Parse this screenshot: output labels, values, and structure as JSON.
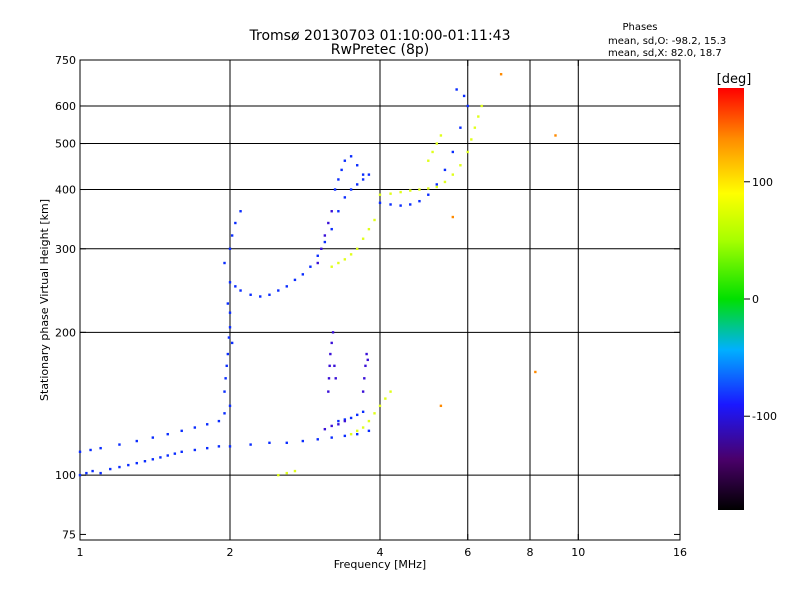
{
  "chart_data": {
    "type": "scatter",
    "title_line1": "Tromsø 20130703 01:10:00-01:11:43",
    "title_line2": "RwPretec (8p)",
    "stats": {
      "heading": "Phases",
      "line1": "mean, sd,O: -98.2, 15.3",
      "line2": "mean, sd,X:  82.0, 18.7"
    },
    "xlabel": "Frequency [MHz]",
    "ylabel": "Stationary phase Virtual Height [km]",
    "xscale": "log",
    "yscale": "log",
    "xlim": [
      1,
      16
    ],
    "ylim": [
      73,
      750
    ],
    "xticks": [
      1,
      2,
      4,
      6,
      8,
      10,
      16
    ],
    "xtick_labels": [
      "1",
      "2",
      "4",
      "6",
      "8",
      "10",
      "16"
    ],
    "yticks": [
      75,
      100,
      200,
      300,
      400,
      500,
      600,
      750
    ],
    "ytick_labels": [
      "75",
      "100",
      "200",
      "300",
      "400",
      "500",
      "600",
      "750"
    ],
    "x_gridlines": [
      2,
      4,
      6,
      8,
      10
    ],
    "y_gridlines": [
      100,
      200,
      300,
      400,
      500,
      600
    ],
    "colorbar": {
      "label": "[deg]",
      "range": [
        -180,
        180
      ],
      "ticks": [
        100,
        0,
        -100
      ],
      "tick_labels": [
        "100",
        "0",
        "-100"
      ],
      "colormap": "rainbow"
    },
    "series": [
      {
        "phase": -105,
        "color": "#0a2cff",
        "points": [
          [
            1.0,
            100
          ],
          [
            1.03,
            101
          ],
          [
            1.06,
            102
          ],
          [
            1.1,
            101
          ],
          [
            1.15,
            103
          ],
          [
            1.2,
            104
          ],
          [
            1.25,
            105
          ],
          [
            1.3,
            106
          ],
          [
            1.35,
            107
          ],
          [
            1.4,
            108
          ],
          [
            1.45,
            109
          ],
          [
            1.5,
            110
          ],
          [
            1.55,
            111
          ],
          [
            1.6,
            112
          ],
          [
            1.7,
            113
          ],
          [
            1.8,
            114
          ],
          [
            1.9,
            115
          ],
          [
            2.0,
            115
          ],
          [
            2.2,
            116
          ],
          [
            2.4,
            117
          ],
          [
            2.6,
            117
          ],
          [
            2.8,
            118
          ],
          [
            3.0,
            119
          ],
          [
            3.2,
            120
          ],
          [
            3.4,
            121
          ],
          [
            3.6,
            122
          ],
          [
            3.8,
            124
          ],
          [
            1.0,
            112
          ],
          [
            1.05,
            113
          ],
          [
            1.1,
            114
          ],
          [
            1.2,
            116
          ],
          [
            1.3,
            118
          ],
          [
            1.4,
            120
          ],
          [
            1.5,
            122
          ],
          [
            1.6,
            124
          ],
          [
            1.7,
            126
          ],
          [
            1.8,
            128
          ],
          [
            1.9,
            130
          ],
          [
            1.95,
            135
          ],
          [
            2.0,
            140
          ],
          [
            1.95,
            150
          ],
          [
            1.96,
            160
          ],
          [
            1.97,
            170
          ],
          [
            1.98,
            180
          ],
          [
            1.99,
            195
          ],
          [
            2.0,
            205
          ],
          [
            2.02,
            190
          ],
          [
            2.0,
            255
          ],
          [
            2.05,
            250
          ],
          [
            2.1,
            245
          ],
          [
            2.2,
            240
          ],
          [
            2.3,
            238
          ],
          [
            2.4,
            240
          ],
          [
            2.5,
            245
          ],
          [
            2.6,
            250
          ],
          [
            2.7,
            258
          ],
          [
            2.8,
            265
          ],
          [
            2.9,
            275
          ],
          [
            3.0,
            290
          ],
          [
            3.1,
            310
          ],
          [
            3.2,
            330
          ],
          [
            3.3,
            360
          ],
          [
            3.4,
            385
          ],
          [
            3.5,
            400
          ],
          [
            3.6,
            410
          ],
          [
            3.7,
            420
          ],
          [
            3.8,
            430
          ],
          [
            1.95,
            280
          ],
          [
            2.0,
            300
          ],
          [
            2.02,
            320
          ],
          [
            2.05,
            340
          ],
          [
            2.1,
            360
          ],
          [
            1.98,
            230
          ],
          [
            2.0,
            220
          ],
          [
            3.25,
            400
          ],
          [
            3.3,
            420
          ],
          [
            3.35,
            440
          ],
          [
            3.4,
            460
          ],
          [
            3.5,
            470
          ],
          [
            3.6,
            450
          ],
          [
            3.7,
            430
          ],
          [
            4.0,
            375
          ],
          [
            4.2,
            372
          ],
          [
            4.4,
            370
          ],
          [
            4.6,
            372
          ],
          [
            4.8,
            378
          ],
          [
            5.0,
            390
          ],
          [
            5.2,
            410
          ],
          [
            5.4,
            440
          ],
          [
            5.6,
            480
          ],
          [
            5.8,
            540
          ],
          [
            6.0,
            600
          ],
          [
            5.9,
            630
          ],
          [
            5.7,
            650
          ],
          [
            3.3,
            130
          ],
          [
            3.4,
            131
          ],
          [
            3.5,
            132
          ],
          [
            3.6,
            134
          ],
          [
            3.7,
            136
          ]
        ]
      },
      {
        "phase": -125,
        "color": "#3a10d8",
        "points": [
          [
            3.15,
            150
          ],
          [
            3.16,
            160
          ],
          [
            3.17,
            170
          ],
          [
            3.18,
            180
          ],
          [
            3.2,
            190
          ],
          [
            3.22,
            200
          ],
          [
            3.24,
            170
          ],
          [
            3.26,
            160
          ],
          [
            3.7,
            150
          ],
          [
            3.72,
            160
          ],
          [
            3.74,
            170
          ],
          [
            3.76,
            180
          ],
          [
            3.78,
            175
          ],
          [
            3.0,
            280
          ],
          [
            3.05,
            300
          ],
          [
            3.1,
            320
          ],
          [
            3.15,
            340
          ],
          [
            3.2,
            360
          ],
          [
            3.1,
            125
          ],
          [
            3.2,
            127
          ],
          [
            3.3,
            128
          ],
          [
            3.4,
            130
          ]
        ]
      },
      {
        "phase": 95,
        "color": "#e0ff1a",
        "points": [
          [
            3.2,
            275
          ],
          [
            3.3,
            280
          ],
          [
            3.4,
            285
          ],
          [
            3.5,
            292
          ],
          [
            3.6,
            300
          ],
          [
            3.7,
            315
          ],
          [
            3.8,
            330
          ],
          [
            3.9,
            345
          ],
          [
            3.5,
            122
          ],
          [
            3.6,
            124
          ],
          [
            3.7,
            126
          ],
          [
            3.8,
            130
          ],
          [
            3.9,
            135
          ],
          [
            4.0,
            140
          ],
          [
            4.1,
            145
          ],
          [
            4.2,
            150
          ],
          [
            4.0,
            390
          ],
          [
            4.2,
            392
          ],
          [
            4.4,
            395
          ],
          [
            4.6,
            398
          ],
          [
            4.8,
            400
          ],
          [
            5.0,
            402
          ],
          [
            5.2,
            405
          ],
          [
            5.4,
            415
          ],
          [
            5.6,
            430
          ],
          [
            5.8,
            450
          ],
          [
            6.0,
            480
          ],
          [
            6.1,
            510
          ],
          [
            6.2,
            540
          ],
          [
            6.3,
            570
          ],
          [
            6.4,
            600
          ],
          [
            5.0,
            460
          ],
          [
            5.1,
            480
          ],
          [
            5.2,
            500
          ],
          [
            5.3,
            520
          ],
          [
            2.5,
            100
          ],
          [
            2.6,
            101
          ],
          [
            2.7,
            102
          ]
        ]
      },
      {
        "phase": 140,
        "color": "#ff8a00",
        "points": [
          [
            5.6,
            350
          ],
          [
            5.3,
            140
          ],
          [
            7.0,
            700
          ],
          [
            8.2,
            165
          ],
          [
            9.0,
            520
          ]
        ]
      }
    ]
  }
}
